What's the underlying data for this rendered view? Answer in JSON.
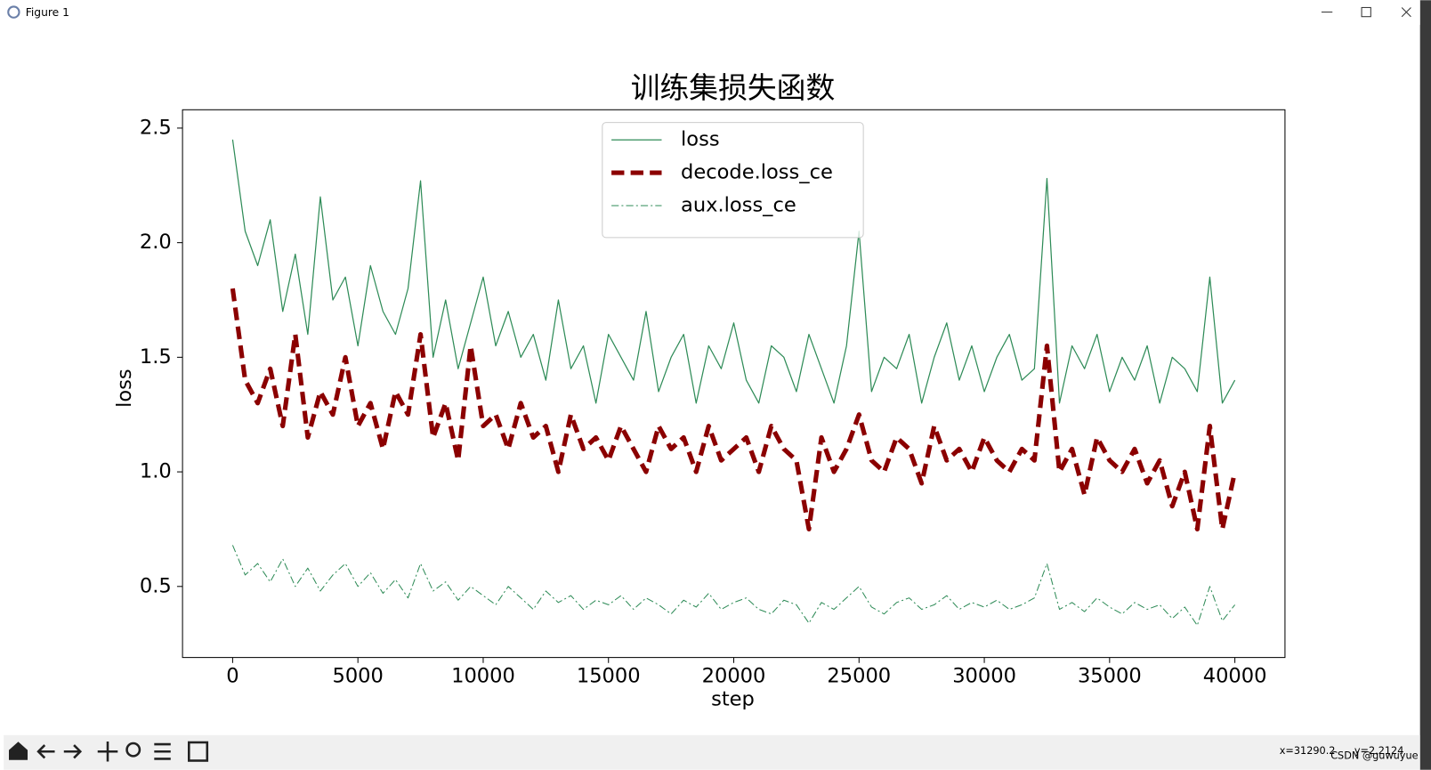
{
  "window": {
    "title": "Figure 1",
    "status_x": "x=31290.2",
    "status_y": "y=2.2124",
    "watermark": "CSDN @guwuyue"
  },
  "chart_data": {
    "type": "line",
    "title": "训练集损失函数",
    "x_label": "step",
    "y_label": "loss",
    "x": [
      0,
      500,
      1000,
      1500,
      2000,
      2500,
      3000,
      3500,
      4000,
      4500,
      5000,
      5500,
      6000,
      6500,
      7000,
      7500,
      8000,
      8500,
      9000,
      9500,
      10000,
      10500,
      11000,
      11500,
      12000,
      12500,
      13000,
      13500,
      14000,
      14500,
      15000,
      15500,
      16000,
      16500,
      17000,
      17500,
      18000,
      18500,
      19000,
      19500,
      20000,
      20500,
      21000,
      21500,
      22000,
      22500,
      23000,
      23500,
      24000,
      24500,
      25000,
      25500,
      26000,
      26500,
      27000,
      27500,
      28000,
      28500,
      29000,
      29500,
      30000,
      30500,
      31000,
      31500,
      32000,
      32500,
      33000,
      33500,
      34000,
      34500,
      35000,
      35500,
      36000,
      36500,
      37000,
      37500,
      38000,
      38500,
      39000,
      39500,
      40000
    ],
    "series": [
      {
        "name": "loss",
        "color": "#2e8b57",
        "style": "solid",
        "values": [
          2.45,
          2.05,
          1.9,
          2.1,
          1.7,
          1.95,
          1.6,
          2.2,
          1.75,
          1.85,
          1.55,
          1.9,
          1.7,
          1.6,
          1.8,
          2.27,
          1.5,
          1.75,
          1.45,
          1.65,
          1.85,
          1.55,
          1.7,
          1.5,
          1.6,
          1.4,
          1.75,
          1.45,
          1.55,
          1.3,
          1.6,
          1.5,
          1.4,
          1.7,
          1.35,
          1.5,
          1.6,
          1.3,
          1.55,
          1.45,
          1.65,
          1.4,
          1.3,
          1.55,
          1.5,
          1.35,
          1.6,
          1.45,
          1.3,
          1.55,
          2.05,
          1.35,
          1.5,
          1.45,
          1.6,
          1.3,
          1.5,
          1.65,
          1.4,
          1.55,
          1.35,
          1.5,
          1.6,
          1.4,
          1.45,
          2.28,
          1.3,
          1.55,
          1.45,
          1.6,
          1.35,
          1.5,
          1.4,
          1.55,
          1.3,
          1.5,
          1.45,
          1.35,
          1.85,
          1.3,
          1.4
        ]
      },
      {
        "name": "decode.loss_ce",
        "color": "#8b0000",
        "style": "dashed",
        "values": [
          1.8,
          1.4,
          1.3,
          1.45,
          1.2,
          1.6,
          1.15,
          1.35,
          1.25,
          1.5,
          1.2,
          1.3,
          1.1,
          1.35,
          1.25,
          1.6,
          1.15,
          1.3,
          1.05,
          1.55,
          1.2,
          1.25,
          1.1,
          1.3,
          1.15,
          1.2,
          1.0,
          1.25,
          1.1,
          1.15,
          1.05,
          1.2,
          1.1,
          1.0,
          1.2,
          1.1,
          1.15,
          1.0,
          1.2,
          1.05,
          1.1,
          1.15,
          1.0,
          1.2,
          1.1,
          1.05,
          0.75,
          1.15,
          1.0,
          1.1,
          1.25,
          1.05,
          1.0,
          1.15,
          1.1,
          0.95,
          1.2,
          1.05,
          1.1,
          1.0,
          1.15,
          1.05,
          1.0,
          1.1,
          1.05,
          1.55,
          1.0,
          1.1,
          0.9,
          1.15,
          1.05,
          1.0,
          1.1,
          0.95,
          1.05,
          0.85,
          1.0,
          0.75,
          1.2,
          0.75,
          1.0
        ]
      },
      {
        "name": "aux.loss_ce",
        "color": "#2e8b57",
        "style": "dashdot",
        "values": [
          0.68,
          0.55,
          0.6,
          0.52,
          0.62,
          0.5,
          0.58,
          0.48,
          0.55,
          0.6,
          0.5,
          0.56,
          0.47,
          0.53,
          0.45,
          0.6,
          0.48,
          0.52,
          0.44,
          0.5,
          0.46,
          0.42,
          0.5,
          0.45,
          0.4,
          0.48,
          0.43,
          0.46,
          0.4,
          0.44,
          0.42,
          0.46,
          0.4,
          0.45,
          0.42,
          0.38,
          0.44,
          0.41,
          0.47,
          0.4,
          0.43,
          0.45,
          0.4,
          0.38,
          0.44,
          0.42,
          0.34,
          0.43,
          0.4,
          0.45,
          0.5,
          0.41,
          0.38,
          0.43,
          0.45,
          0.4,
          0.42,
          0.46,
          0.4,
          0.43,
          0.41,
          0.44,
          0.4,
          0.42,
          0.45,
          0.6,
          0.4,
          0.43,
          0.39,
          0.45,
          0.41,
          0.38,
          0.43,
          0.4,
          0.42,
          0.36,
          0.41,
          0.33,
          0.5,
          0.35,
          0.42
        ]
      }
    ],
    "xlim": [
      -2000,
      42000
    ],
    "ylim": [
      0.19,
      2.58
    ],
    "xticks": [
      0,
      5000,
      10000,
      15000,
      20000,
      25000,
      30000,
      35000,
      40000
    ],
    "yticks": [
      0.5,
      {
        "value": 1,
        "label": "1.0"
      },
      1.5,
      {
        "value": 2,
        "label": "2.0"
      },
      2.5
    ],
    "grid": false,
    "legend": "upper center"
  }
}
